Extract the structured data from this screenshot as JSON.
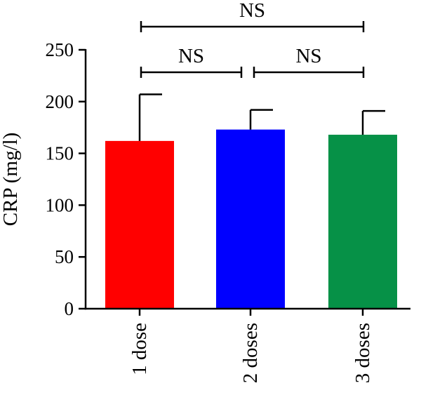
{
  "chart_data": {
    "type": "bar",
    "title": "",
    "xlabel": "",
    "ylabel": "CRP (mg/l)",
    "ylim": [
      0,
      250
    ],
    "yticks": [
      0,
      50,
      100,
      150,
      200,
      250
    ],
    "grid": false,
    "categories": [
      "1 dose",
      "2 doses",
      "3 doses"
    ],
    "values": [
      162,
      173,
      168
    ],
    "error_upper": [
      207,
      192,
      191
    ],
    "colors": [
      "#ff0000",
      "#0000ff",
      "#069147"
    ],
    "comparisons": [
      {
        "from": 0,
        "to": 2,
        "label": "NS"
      },
      {
        "from": 0,
        "to": 1,
        "label": "NS"
      },
      {
        "from": 1,
        "to": 2,
        "label": "NS"
      }
    ]
  }
}
